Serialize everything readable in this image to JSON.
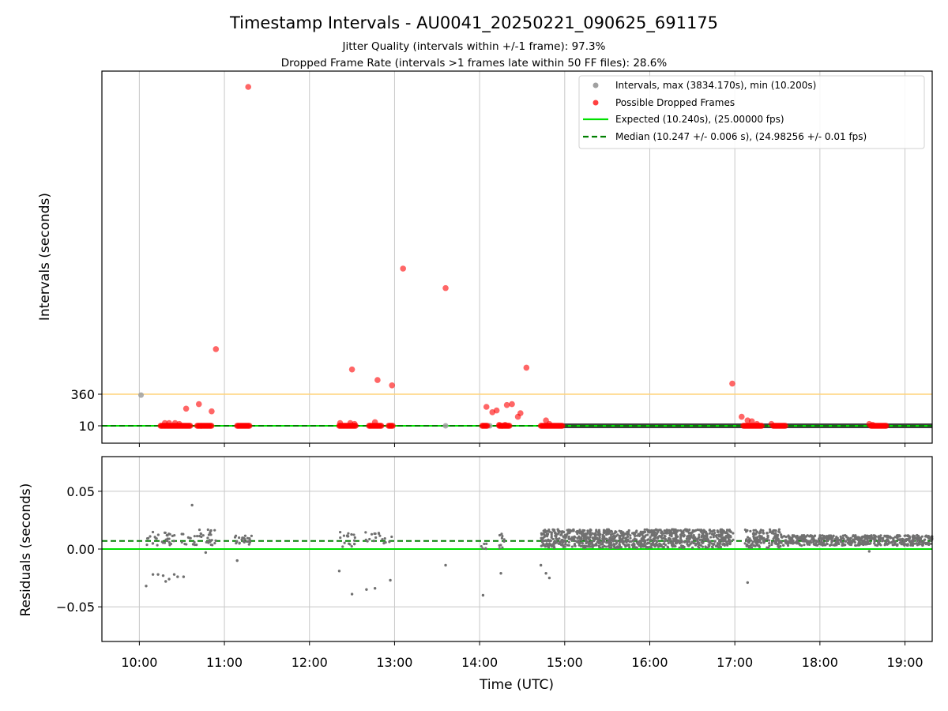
{
  "figure": {
    "title": "Timestamp Intervals - AU0041_20250221_090625_691175",
    "subtitle_1": "Jitter Quality (intervals within +/-1 frame): 97.3%",
    "subtitle_2": "Dropped Frame Rate (intervals >1 frames late within 50 FF files): 28.6%",
    "xlabel": "Time (UTC)"
  },
  "colors": {
    "intervals": "#a0a0a0",
    "dropped": "#ff0000",
    "expected": "#00e000",
    "median": "#007f00",
    "threshold": "#ffd37a",
    "residuals": "#707070",
    "grid": "#c8c8c8",
    "dark_band": "#404040"
  },
  "chart_data": [
    {
      "type": "scatter",
      "ylabel": "Intervals (seconds)",
      "x_axis": {
        "ticks": [
          "10:00",
          "11:00",
          "12:00",
          "13:00",
          "14:00",
          "15:00",
          "16:00",
          "17:00",
          "18:00",
          "19:00"
        ],
        "range_hours": [
          9.56,
          19.32
        ]
      },
      "y_ticks": [
        10,
        360
      ],
      "ylim": [
        -200,
        4000
      ],
      "grid": "x",
      "legend_position": "top-right",
      "legend": [
        "Intervals, max (3834.170s), min (10.200s)",
        "Possible Dropped Frames",
        "Expected (10.240s), (25.00000 fps)",
        "Median (10.247 +/- 0.006 s), (24.98256 +/- 0.01 fps)"
      ],
      "threshold_line": 360,
      "expected": 10.24,
      "median": 10.247,
      "dense_band_hours": [
        14.95,
        19.32
      ],
      "intervals_points": [
        [
          10.02,
          350
        ],
        [
          14.12,
          10
        ],
        [
          13.6,
          10
        ]
      ],
      "dropped_clusters": [
        [
          10.25,
          10.6
        ],
        [
          10.68,
          10.85
        ],
        [
          11.15,
          11.3
        ],
        [
          12.35,
          12.55
        ],
        [
          12.7,
          12.85
        ],
        [
          12.93,
          12.98
        ],
        [
          14.03,
          14.1
        ],
        [
          14.23,
          14.35
        ],
        [
          14.72,
          14.98
        ],
        [
          17.1,
          17.32
        ],
        [
          17.45,
          17.6
        ],
        [
          18.6,
          18.78
        ]
      ],
      "dropped_points": [
        [
          11.28,
          3834
        ],
        [
          10.9,
          870
        ],
        [
          13.1,
          1780
        ],
        [
          13.6,
          1560
        ],
        [
          12.5,
          640
        ],
        [
          12.8,
          520
        ],
        [
          12.97,
          460
        ],
        [
          14.55,
          660
        ],
        [
          16.97,
          480
        ],
        [
          10.55,
          200
        ],
        [
          10.7,
          250
        ],
        [
          10.85,
          170
        ],
        [
          14.08,
          220
        ],
        [
          14.15,
          160
        ],
        [
          14.2,
          180
        ],
        [
          14.32,
          240
        ],
        [
          14.38,
          250
        ],
        [
          14.45,
          110
        ],
        [
          14.48,
          150
        ],
        [
          10.3,
          40
        ],
        [
          10.35,
          40
        ],
        [
          10.42,
          40
        ],
        [
          10.47,
          30
        ],
        [
          12.36,
          40
        ],
        [
          12.48,
          40
        ],
        [
          12.53,
          30
        ],
        [
          12.77,
          50
        ],
        [
          14.23,
          20
        ],
        [
          14.3,
          20
        ],
        [
          14.78,
          70
        ],
        [
          14.82,
          30
        ],
        [
          17.08,
          110
        ],
        [
          17.15,
          70
        ],
        [
          17.2,
          60
        ],
        [
          17.26,
          30
        ],
        [
          17.43,
          30
        ],
        [
          18.58,
          30
        ],
        [
          18.62,
          20
        ]
      ]
    },
    {
      "type": "scatter",
      "ylabel": "Residuals (seconds)",
      "y_ticks": [
        -0.05,
        0.0,
        0.05
      ],
      "y_tick_labels": [
        "−0.05",
        "0.00",
        "0.05"
      ],
      "ylim": [
        -0.08,
        0.08
      ],
      "grid": "both",
      "expected_residual": 0.0,
      "median_residual": 0.007,
      "residual_points": [
        [
          10.08,
          -0.032
        ],
        [
          10.16,
          -0.022
        ],
        [
          10.22,
          -0.022
        ],
        [
          10.28,
          -0.023
        ],
        [
          10.31,
          -0.028
        ],
        [
          10.35,
          -0.026
        ],
        [
          10.41,
          -0.022
        ],
        [
          10.45,
          -0.024
        ],
        [
          10.52,
          -0.024
        ],
        [
          10.62,
          0.038
        ],
        [
          10.78,
          -0.003
        ],
        [
          11.15,
          -0.01
        ],
        [
          12.35,
          -0.019
        ],
        [
          12.5,
          -0.039
        ],
        [
          12.67,
          -0.035
        ],
        [
          12.77,
          -0.034
        ],
        [
          12.95,
          -0.027
        ],
        [
          13.6,
          -0.014
        ],
        [
          14.04,
          -0.04
        ],
        [
          14.25,
          -0.021
        ],
        [
          14.72,
          -0.014
        ],
        [
          14.78,
          -0.021
        ],
        [
          14.82,
          -0.025
        ],
        [
          17.15,
          -0.029
        ],
        [
          18.58,
          -0.002
        ]
      ],
      "residual_clusters": [
        {
          "x": [
            10.08,
            10.9
          ],
          "y": [
            0.003,
            0.017
          ],
          "n": 70
        },
        {
          "x": [
            11.12,
            11.32
          ],
          "y": [
            0.004,
            0.012
          ],
          "n": 25
        },
        {
          "x": [
            12.35,
            12.55
          ],
          "y": [
            0.002,
            0.015
          ],
          "n": 18
        },
        {
          "x": [
            12.65,
            12.98
          ],
          "y": [
            0.004,
            0.015
          ],
          "n": 18
        },
        {
          "x": [
            14.02,
            14.1
          ],
          "y": [
            0.0,
            0.01
          ],
          "n": 6
        },
        {
          "x": [
            14.23,
            14.3
          ],
          "y": [
            0.0,
            0.016
          ],
          "n": 10
        },
        {
          "x": [
            14.72,
            16.98
          ],
          "y": [
            0.001,
            0.017
          ],
          "n": 950
        },
        {
          "x": [
            17.12,
            17.55
          ],
          "y": [
            0.001,
            0.017
          ],
          "n": 140
        },
        {
          "x": [
            17.55,
            19.32
          ],
          "y": [
            0.003,
            0.012
          ],
          "n": 520
        }
      ]
    }
  ]
}
